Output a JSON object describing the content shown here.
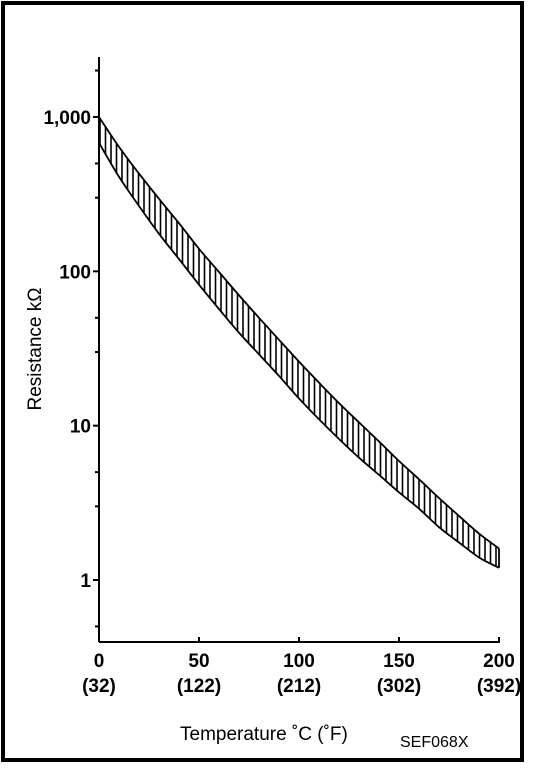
{
  "chart_data": {
    "type": "area",
    "title": "",
    "xlabel": "Temperature ˚C  (˚F)",
    "ylabel": "Resistance kΩ",
    "y_scale": "log",
    "xlim": [
      0,
      200
    ],
    "ylim": [
      0.4,
      2500
    ],
    "grid": false,
    "x_ticks": [
      {
        "value": 0,
        "label": "0",
        "sublabel": "(32)"
      },
      {
        "value": 50,
        "label": "50",
        "sublabel": "(122)"
      },
      {
        "value": 100,
        "label": "100",
        "sublabel": "(212)"
      },
      {
        "value": 150,
        "label": "150",
        "sublabel": "(302)"
      },
      {
        "value": 200,
        "label": "200",
        "sublabel": "(392)"
      }
    ],
    "y_ticks": [
      {
        "value": 1,
        "label": "1"
      },
      {
        "value": 10,
        "label": "10"
      },
      {
        "value": 100,
        "label": "100"
      },
      {
        "value": 1000,
        "label": "1,000"
      }
    ],
    "y_minor_ticks": [
      0.5,
      3,
      5,
      30,
      50,
      300,
      500,
      2000
    ],
    "series": [
      {
        "x": [
          0,
          10,
          20,
          30,
          40,
          50,
          60,
          70,
          80,
          90,
          100,
          110,
          120,
          130,
          140,
          150,
          160,
          170,
          180,
          190,
          200
        ],
        "upper": [
          1000,
          640,
          430,
          295,
          205,
          140,
          99,
          70,
          50,
          36,
          26,
          19,
          14,
          10.5,
          7.9,
          5.9,
          4.5,
          3.4,
          2.6,
          2.0,
          1.6
        ],
        "lower": [
          680,
          410,
          265,
          175,
          120,
          82,
          57,
          40,
          29,
          21,
          15,
          11,
          8.2,
          6.2,
          4.8,
          3.7,
          2.9,
          2.2,
          1.75,
          1.4,
          1.2
        ],
        "fill_pattern": "vertical-hatch"
      }
    ],
    "annotations": [
      "SEF068X"
    ]
  },
  "colors": {
    "frame": "#000000",
    "ink": "#000000",
    "background": "#ffffff"
  }
}
